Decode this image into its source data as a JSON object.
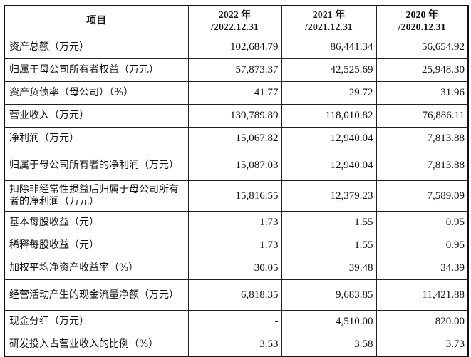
{
  "headers": [
    {
      "line1": "项目",
      "line2": ""
    },
    {
      "line1": "2022 年",
      "line2": "/2022.12.31"
    },
    {
      "line1": "2021 年",
      "line2": "/2021.12.31"
    },
    {
      "line1": "2020 年",
      "line2": "/2020.12.31"
    }
  ],
  "rows": [
    {
      "label": "资产总额（万元）",
      "values": [
        "102,684.79",
        "86,441.34",
        "56,654.92"
      ]
    },
    {
      "label": "归属于母公司所有者权益（万元）",
      "values": [
        "57,873.37",
        "42,525.69",
        "25,948.30"
      ]
    },
    {
      "label": "资产负债率（母公司）（%）",
      "values": [
        "41.77",
        "29.72",
        "31.96"
      ]
    },
    {
      "label": "营业收入（万元）",
      "values": [
        "139,789.89",
        "118,010.82",
        "76,886.11"
      ]
    },
    {
      "label": "净利润（万元）",
      "values": [
        "15,067.82",
        "12,940.04",
        "7,813.88"
      ]
    },
    {
      "label": "归属于母公司所有者的净利润（万元）",
      "values": [
        "15,087.03",
        "12,940.04",
        "7,813.88"
      ]
    },
    {
      "label": "扣除非经常性损益后归属于母公司所有者的净利润（万元）",
      "values": [
        "15,816.55",
        "12,379.23",
        "7,589.09"
      ]
    },
    {
      "label": "基本每股收益（元）",
      "values": [
        "1.73",
        "1.55",
        "0.95"
      ]
    },
    {
      "label": "稀释每股收益（元）",
      "values": [
        "1.73",
        "1.55",
        "0.95"
      ]
    },
    {
      "label": "加权平均净资产收益率（%）",
      "values": [
        "30.05",
        "39.48",
        "34.39"
      ]
    },
    {
      "label": "经营活动产生的现金流量净额（万元）",
      "values": [
        "6,818.35",
        "9,683.85",
        "11,421.88"
      ]
    },
    {
      "label": "现金分红（万元）",
      "values": [
        "-",
        "4,510.00",
        "820.00"
      ]
    },
    {
      "label": "研发投入占营业收入的比例（%）",
      "values": [
        "3.53",
        "3.58",
        "3.73"
      ]
    }
  ]
}
